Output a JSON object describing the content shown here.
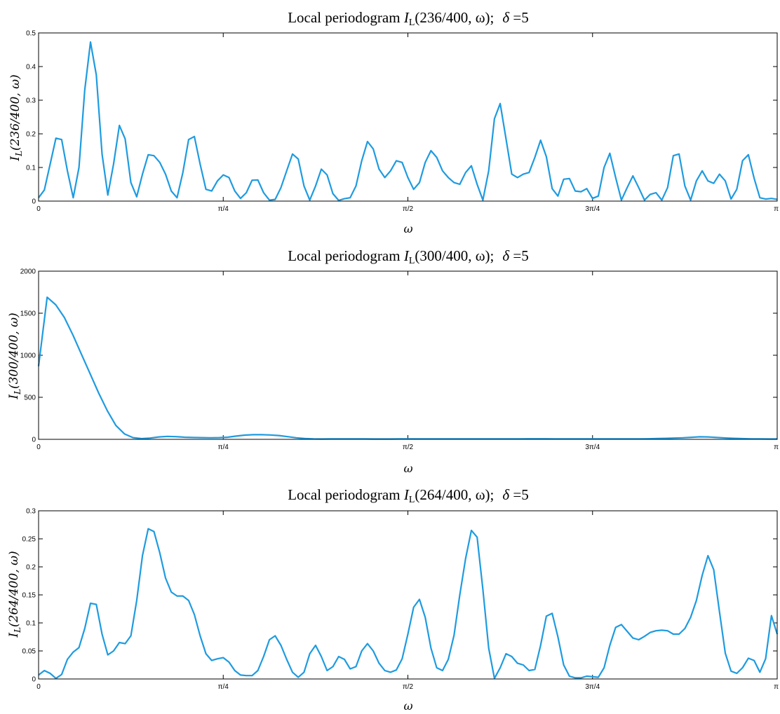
{
  "chart_data": [
    {
      "type": "line",
      "title": "Local periodogram I_L(236/400, ω); δ =5",
      "title_parts": {
        "prefix": "Local periodogram ",
        "func": "I",
        "sub": "L",
        "args": "(236/400, ω);",
        "delta": "δ",
        "eq": " =5"
      },
      "xlabel": "ω",
      "ylabel": "I_L(236/400, ω)",
      "ylabel_parts": {
        "func": "I",
        "sub": "L",
        "args": "(236/400, ω)"
      },
      "xlim": [
        0,
        3.14159
      ],
      "ylim": [
        0,
        0.5
      ],
      "xticks": [
        0,
        0.7854,
        1.5708,
        2.3562,
        3.14159
      ],
      "xtick_labels": [
        "0",
        "π/4",
        "π/2",
        "3π/4",
        "π"
      ],
      "yticks": [
        0,
        0.1,
        0.2,
        0.3,
        0.4,
        0.5
      ],
      "ytick_labels": [
        "0",
        "0.1",
        "0.2",
        "0.3",
        "0.4",
        "0.5"
      ],
      "color": "#1e9be0",
      "values": [
        0.01,
        0.033,
        0.11,
        0.187,
        0.183,
        0.09,
        0.01,
        0.1,
        0.33,
        0.473,
        0.375,
        0.14,
        0.018,
        0.11,
        0.225,
        0.185,
        0.055,
        0.013,
        0.08,
        0.138,
        0.135,
        0.115,
        0.08,
        0.03,
        0.01,
        0.085,
        0.183,
        0.192,
        0.11,
        0.035,
        0.03,
        0.06,
        0.078,
        0.07,
        0.03,
        0.008,
        0.025,
        0.062,
        0.063,
        0.025,
        0.003,
        0.005,
        0.04,
        0.09,
        0.14,
        0.125,
        0.045,
        0.003,
        0.045,
        0.095,
        0.078,
        0.022,
        0.002,
        0.007,
        0.01,
        0.045,
        0.12,
        0.177,
        0.155,
        0.095,
        0.07,
        0.09,
        0.12,
        0.115,
        0.07,
        0.035,
        0.055,
        0.115,
        0.15,
        0.13,
        0.09,
        0.07,
        0.055,
        0.05,
        0.085,
        0.105,
        0.05,
        0.003,
        0.09,
        0.245,
        0.29,
        0.185,
        0.08,
        0.07,
        0.08,
        0.085,
        0.13,
        0.181,
        0.132,
        0.037,
        0.015,
        0.065,
        0.067,
        0.03,
        0.028,
        0.037,
        0.008,
        0.015,
        0.1,
        0.142,
        0.07,
        0.003,
        0.04,
        0.075,
        0.04,
        0.003,
        0.02,
        0.025,
        0.003,
        0.04,
        0.135,
        0.14,
        0.045,
        0.003,
        0.06,
        0.09,
        0.06,
        0.053,
        0.08,
        0.06,
        0.006,
        0.035,
        0.12,
        0.138,
        0.068,
        0.01,
        0.006,
        0.008,
        0.005
      ]
    },
    {
      "type": "line",
      "title": "Local periodogram I_L(300/400, ω); δ =5",
      "title_parts": {
        "prefix": "Local periodogram ",
        "func": "I",
        "sub": "L",
        "args": "(300/400, ω);",
        "delta": "δ",
        "eq": " =5"
      },
      "xlabel": "ω",
      "ylabel": "I_L(300/400, ω)",
      "ylabel_parts": {
        "func": "I",
        "sub": "L",
        "args": "(300/400, ω)"
      },
      "xlim": [
        0,
        3.14159
      ],
      "ylim": [
        0,
        2000
      ],
      "xticks": [
        0,
        0.7854,
        1.5708,
        2.3562,
        3.14159
      ],
      "xtick_labels": [
        "0",
        "π/4",
        "π/2",
        "3π/4",
        "π"
      ],
      "yticks": [
        0,
        500,
        1000,
        1500,
        2000
      ],
      "ytick_labels": [
        "0",
        "500",
        "1000",
        "1500",
        "2000"
      ],
      "color": "#1e9be0",
      "values": [
        870,
        1690,
        1600,
        1450,
        1240,
        1010,
        780,
        550,
        340,
        165,
        65,
        20,
        8,
        15,
        28,
        35,
        32,
        25,
        22,
        20,
        18,
        20,
        25,
        38,
        50,
        55,
        55,
        52,
        45,
        32,
        18,
        9,
        5,
        4,
        5,
        5,
        6,
        6,
        5,
        4,
        4,
        4,
        5,
        5,
        6,
        5,
        5,
        5,
        5,
        5,
        5,
        5,
        5,
        5,
        5,
        5,
        6,
        7,
        7,
        7,
        6,
        5,
        5,
        5,
        5,
        5,
        6,
        5,
        5,
        5,
        5,
        7,
        9,
        12,
        15,
        18,
        24,
        30,
        28,
        22,
        16,
        12,
        8,
        6,
        5,
        4,
        4
      ]
    },
    {
      "type": "line",
      "title": "Local periodogram I_L(264/400, ω); δ =5",
      "title_parts": {
        "prefix": "Local periodogram ",
        "func": "I",
        "sub": "L",
        "args": "(264/400, ω);",
        "delta": "δ",
        "eq": " =5"
      },
      "xlabel": "ω",
      "ylabel": "I_L(264/400, ω)",
      "ylabel_parts": {
        "func": "I",
        "sub": "L",
        "args": "(264/400, ω)"
      },
      "xlim": [
        0,
        3.14159
      ],
      "ylim": [
        0,
        0.3
      ],
      "xticks": [
        0,
        0.7854,
        1.5708,
        2.3562,
        3.14159
      ],
      "xtick_labels": [
        "0",
        "π/4",
        "π/2",
        "3π/4",
        "π"
      ],
      "yticks": [
        0,
        0.05,
        0.1,
        0.15,
        0.2,
        0.25,
        0.3
      ],
      "ytick_labels": [
        "0",
        "0.05",
        "0.1",
        "0.15",
        "0.2",
        "0.25",
        "0.3"
      ],
      "color": "#1e9be0",
      "values": [
        0.007,
        0.015,
        0.01,
        0.001,
        0.008,
        0.035,
        0.048,
        0.056,
        0.09,
        0.135,
        0.133,
        0.08,
        0.043,
        0.05,
        0.065,
        0.063,
        0.077,
        0.14,
        0.22,
        0.268,
        0.263,
        0.225,
        0.18,
        0.155,
        0.148,
        0.148,
        0.14,
        0.115,
        0.077,
        0.045,
        0.033,
        0.036,
        0.038,
        0.03,
        0.015,
        0.007,
        0.006,
        0.006,
        0.015,
        0.04,
        0.07,
        0.077,
        0.06,
        0.035,
        0.012,
        0.003,
        0.012,
        0.045,
        0.06,
        0.04,
        0.015,
        0.022,
        0.04,
        0.035,
        0.018,
        0.022,
        0.05,
        0.063,
        0.05,
        0.028,
        0.015,
        0.012,
        0.016,
        0.036,
        0.08,
        0.128,
        0.142,
        0.11,
        0.055,
        0.02,
        0.015,
        0.035,
        0.078,
        0.15,
        0.215,
        0.265,
        0.253,
        0.16,
        0.055,
        0.001,
        0.02,
        0.045,
        0.04,
        0.028,
        0.025,
        0.015,
        0.017,
        0.06,
        0.112,
        0.117,
        0.075,
        0.025,
        0.005,
        0.002,
        0.002,
        0.005,
        0.004,
        0.003,
        0.02,
        0.06,
        0.092,
        0.097,
        0.085,
        0.073,
        0.07,
        0.076,
        0.083,
        0.086,
        0.087,
        0.086,
        0.08,
        0.08,
        0.09,
        0.11,
        0.14,
        0.185,
        0.22,
        0.195,
        0.12,
        0.046,
        0.014,
        0.01,
        0.02,
        0.037,
        0.033,
        0.012,
        0.036,
        0.113,
        0.08
      ]
    }
  ]
}
